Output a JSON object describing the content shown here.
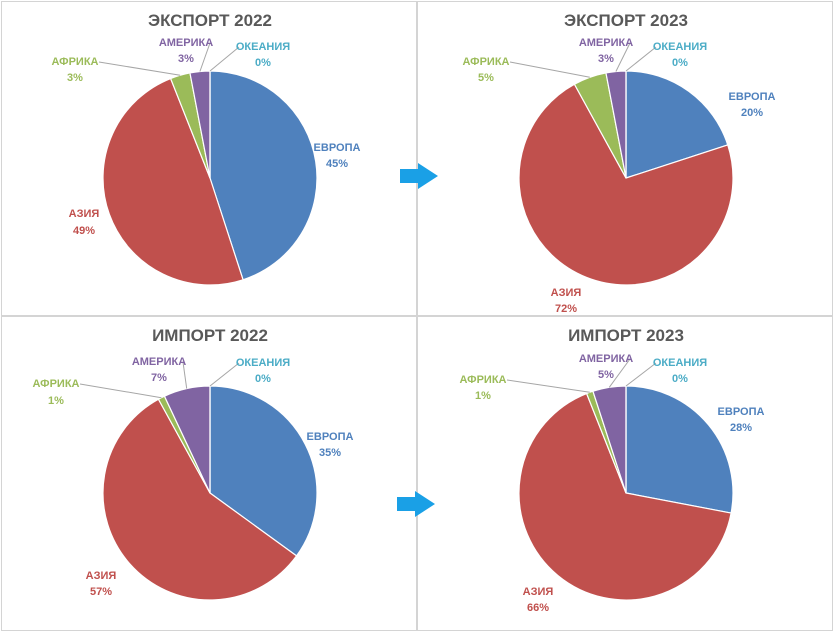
{
  "chart_data": [
    {
      "type": "pie",
      "title": "ЭКСПОРТ 2022",
      "slices": [
        {
          "name": "ЕВРОПА",
          "value": 45,
          "label": "45%",
          "color": "#4F81BD"
        },
        {
          "name": "АЗИЯ",
          "value": 49,
          "label": "49%",
          "color": "#C0504D"
        },
        {
          "name": "АФРИКА",
          "value": 3,
          "label": "3%",
          "color": "#9BBB59"
        },
        {
          "name": "АМЕРИКА",
          "value": 3,
          "label": "3%",
          "color": "#8064A2"
        },
        {
          "name": "ОКЕАНИЯ",
          "value": 0,
          "label": "0%",
          "color": "#4BACC6"
        }
      ]
    },
    {
      "type": "pie",
      "title": "ЭКСПОРТ 2023",
      "slices": [
        {
          "name": "ЕВРОПА",
          "value": 20,
          "label": "20%",
          "color": "#4F81BD"
        },
        {
          "name": "АЗИЯ",
          "value": 72,
          "label": "72%",
          "color": "#C0504D"
        },
        {
          "name": "АФРИКА",
          "value": 5,
          "label": "5%",
          "color": "#9BBB59"
        },
        {
          "name": "АМЕРИКА",
          "value": 3,
          "label": "3%",
          "color": "#8064A2"
        },
        {
          "name": "ОКЕАНИЯ",
          "value": 0,
          "label": "0%",
          "color": "#4BACC6"
        }
      ]
    },
    {
      "type": "pie",
      "title": "ИМПОРТ 2022",
      "slices": [
        {
          "name": "ЕВРОПА",
          "value": 35,
          "label": "35%",
          "color": "#4F81BD"
        },
        {
          "name": "АЗИЯ",
          "value": 57,
          "label": "57%",
          "color": "#C0504D"
        },
        {
          "name": "АФРИКА",
          "value": 1,
          "label": "1%",
          "color": "#9BBB59"
        },
        {
          "name": "АМЕРИКА",
          "value": 7,
          "label": "7%",
          "color": "#8064A2"
        },
        {
          "name": "ОКЕАНИЯ",
          "value": 0,
          "label": "0%",
          "color": "#4BACC6"
        }
      ]
    },
    {
      "type": "pie",
      "title": "ИМПОРТ 2023",
      "slices": [
        {
          "name": "ЕВРОПА",
          "value": 28,
          "label": "28%",
          "color": "#4F81BD"
        },
        {
          "name": "АЗИЯ",
          "value": 66,
          "label": "66%",
          "color": "#C0504D"
        },
        {
          "name": "АФРИКА",
          "value": 1,
          "label": "1%",
          "color": "#9BBB59"
        },
        {
          "name": "АМЕРИКА",
          "value": 5,
          "label": "5%",
          "color": "#8064A2"
        },
        {
          "name": "ОКЕАНИЯ",
          "value": 0,
          "label": "0%",
          "color": "#4BACC6"
        }
      ]
    }
  ],
  "arrow_color": "#1AA0E6",
  "arrow_icon": "arrow-right-icon"
}
